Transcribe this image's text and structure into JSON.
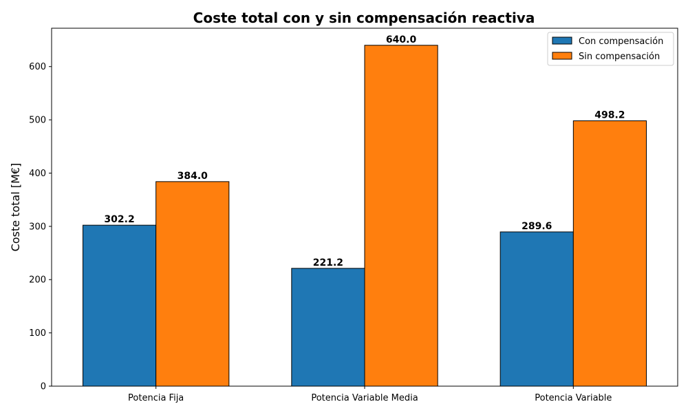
{
  "chart_data": {
    "type": "bar",
    "title": "Coste total con y sin compensación reactiva",
    "xlabel": "",
    "ylabel": "Coste total [M€]",
    "categories": [
      "Potencia Fija",
      "Potencia Variable Media",
      "Potencia Variable"
    ],
    "series": [
      {
        "name": "Con compensación",
        "values": [
          302.2,
          221.2,
          289.6
        ],
        "labels": [
          "302.2",
          "221.2",
          "289.6"
        ],
        "color": "#1f77b4"
      },
      {
        "name": "Sin compensación",
        "values": [
          384.0,
          640.0,
          498.2
        ],
        "labels": [
          "384.0",
          "640.0",
          "498.2"
        ],
        "color": "#ff7f0e"
      }
    ],
    "ylim": [
      0,
      672
    ],
    "yticks": [
      0,
      100,
      200,
      300,
      400,
      500,
      600
    ],
    "grid": false,
    "legend": "top-right"
  }
}
